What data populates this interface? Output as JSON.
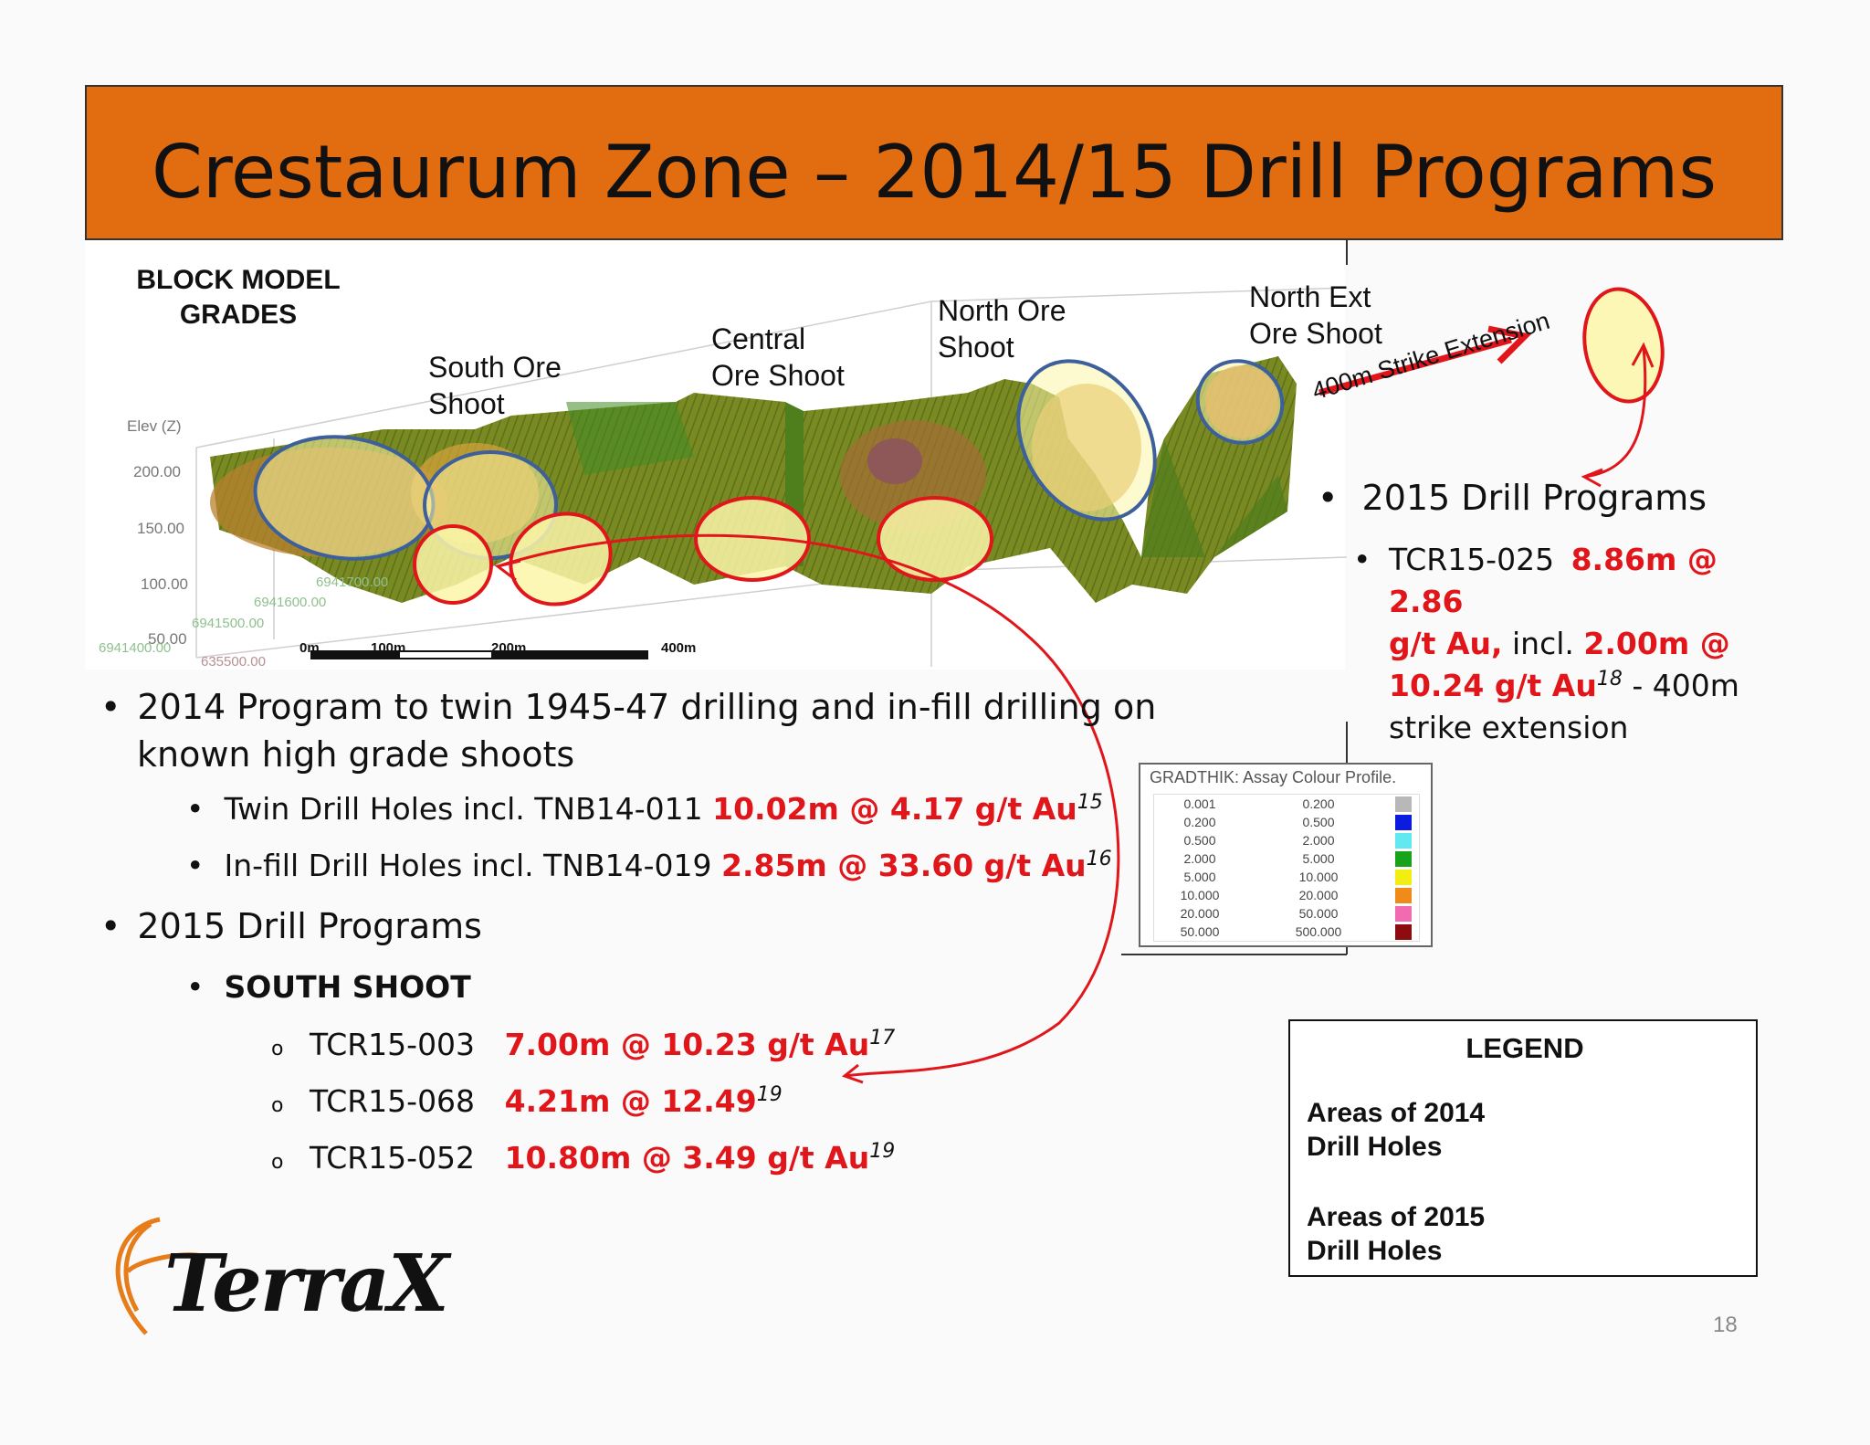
{
  "title": "Crestaurum Zone – 2014/15 Drill Programs",
  "diagram": {
    "block_model_label": [
      "BLOCK MODEL",
      "GRADES"
    ],
    "elev_label": "Elev (Z)",
    "elev_ticks": [
      "200.00",
      "150.00",
      "100.00",
      "50.00"
    ],
    "northing_ticks": [
      "6941700.00",
      "6941600.00",
      "6941500.00",
      "6941400.00"
    ],
    "easting_tick": "635500.00",
    "scale_labels": [
      "0m",
      "100m",
      "200m",
      "400m"
    ],
    "shoot_labels": {
      "south": [
        "South Ore",
        "Shoot"
      ],
      "central": [
        "Central",
        "Ore Shoot"
      ],
      "north": [
        "North Ore",
        "Shoot"
      ],
      "north_ext": [
        "North Ext",
        "Ore Shoot"
      ]
    },
    "strike_extension_label": "400m Strike Extension"
  },
  "right_panel": {
    "heading": "2015 Drill Programs",
    "item_hole": "TCR15-025",
    "item_value_1": "8.86m @ 2.86",
    "item_value_2": "g/t Au,",
    "item_incl": "incl.",
    "item_value_3": "2.00m @",
    "item_value_4": "10.24 g/t Au",
    "item_sup": "18",
    "item_tail_1": "- 400m",
    "item_tail_2": "strike extension"
  },
  "bullets": {
    "b1_line1": "2014 Program to twin 1945-47 drilling and in-fill drilling on",
    "b1_line2": "known high grade shoots",
    "twin_prefix": "Twin Drill Holes incl. TNB14-011",
    "twin_value": "10.02m @ 4.17 g/t Au",
    "twin_sup": "15",
    "infill_prefix": "In-fill Drill Holes incl. TNB14-019",
    "infill_value": "2.85m @ 33.60 g/t Au",
    "infill_sup": "16",
    "b2": "2015 Drill Programs",
    "south_shoot": "SOUTH SHOOT",
    "holes": [
      {
        "id": "TCR15-003",
        "value": "7.00m @ 10.23 g/t Au",
        "sup": "17"
      },
      {
        "id": "TCR15-068",
        "value": "4.21m @ 12.49",
        "sup": "19"
      },
      {
        "id": "TCR15-052",
        "value": "10.80m @ 3.49 g/t Au",
        "sup": "19"
      }
    ]
  },
  "assay": {
    "title": "GRADTHIK: Assay Colour Profile.",
    "from": [
      "0.001",
      "0.200",
      "0.500",
      "2.000",
      "5.000",
      "10.000",
      "20.000",
      "50.000"
    ],
    "to": [
      "0.200",
      "0.500",
      "2.000",
      "5.000",
      "10.000",
      "20.000",
      "50.000",
      "500.000"
    ],
    "colors": [
      "#b8b8b8",
      "#0b1be0",
      "#62e8f0",
      "#18a31a",
      "#f2ee12",
      "#f08a18",
      "#f26ab0",
      "#8c0c10"
    ]
  },
  "legend": {
    "title": "LEGEND",
    "item1_line1": "Areas of 2014",
    "item1_line2": "Drill Holes",
    "item2_line1": "Areas of 2015",
    "item2_line2": "Drill Holes",
    "color_2014": "#3d5f9c",
    "color_2015": "#e0161b",
    "fill": "#fbf6a8"
  },
  "logo_text": "TerraX",
  "page_number": "18"
}
